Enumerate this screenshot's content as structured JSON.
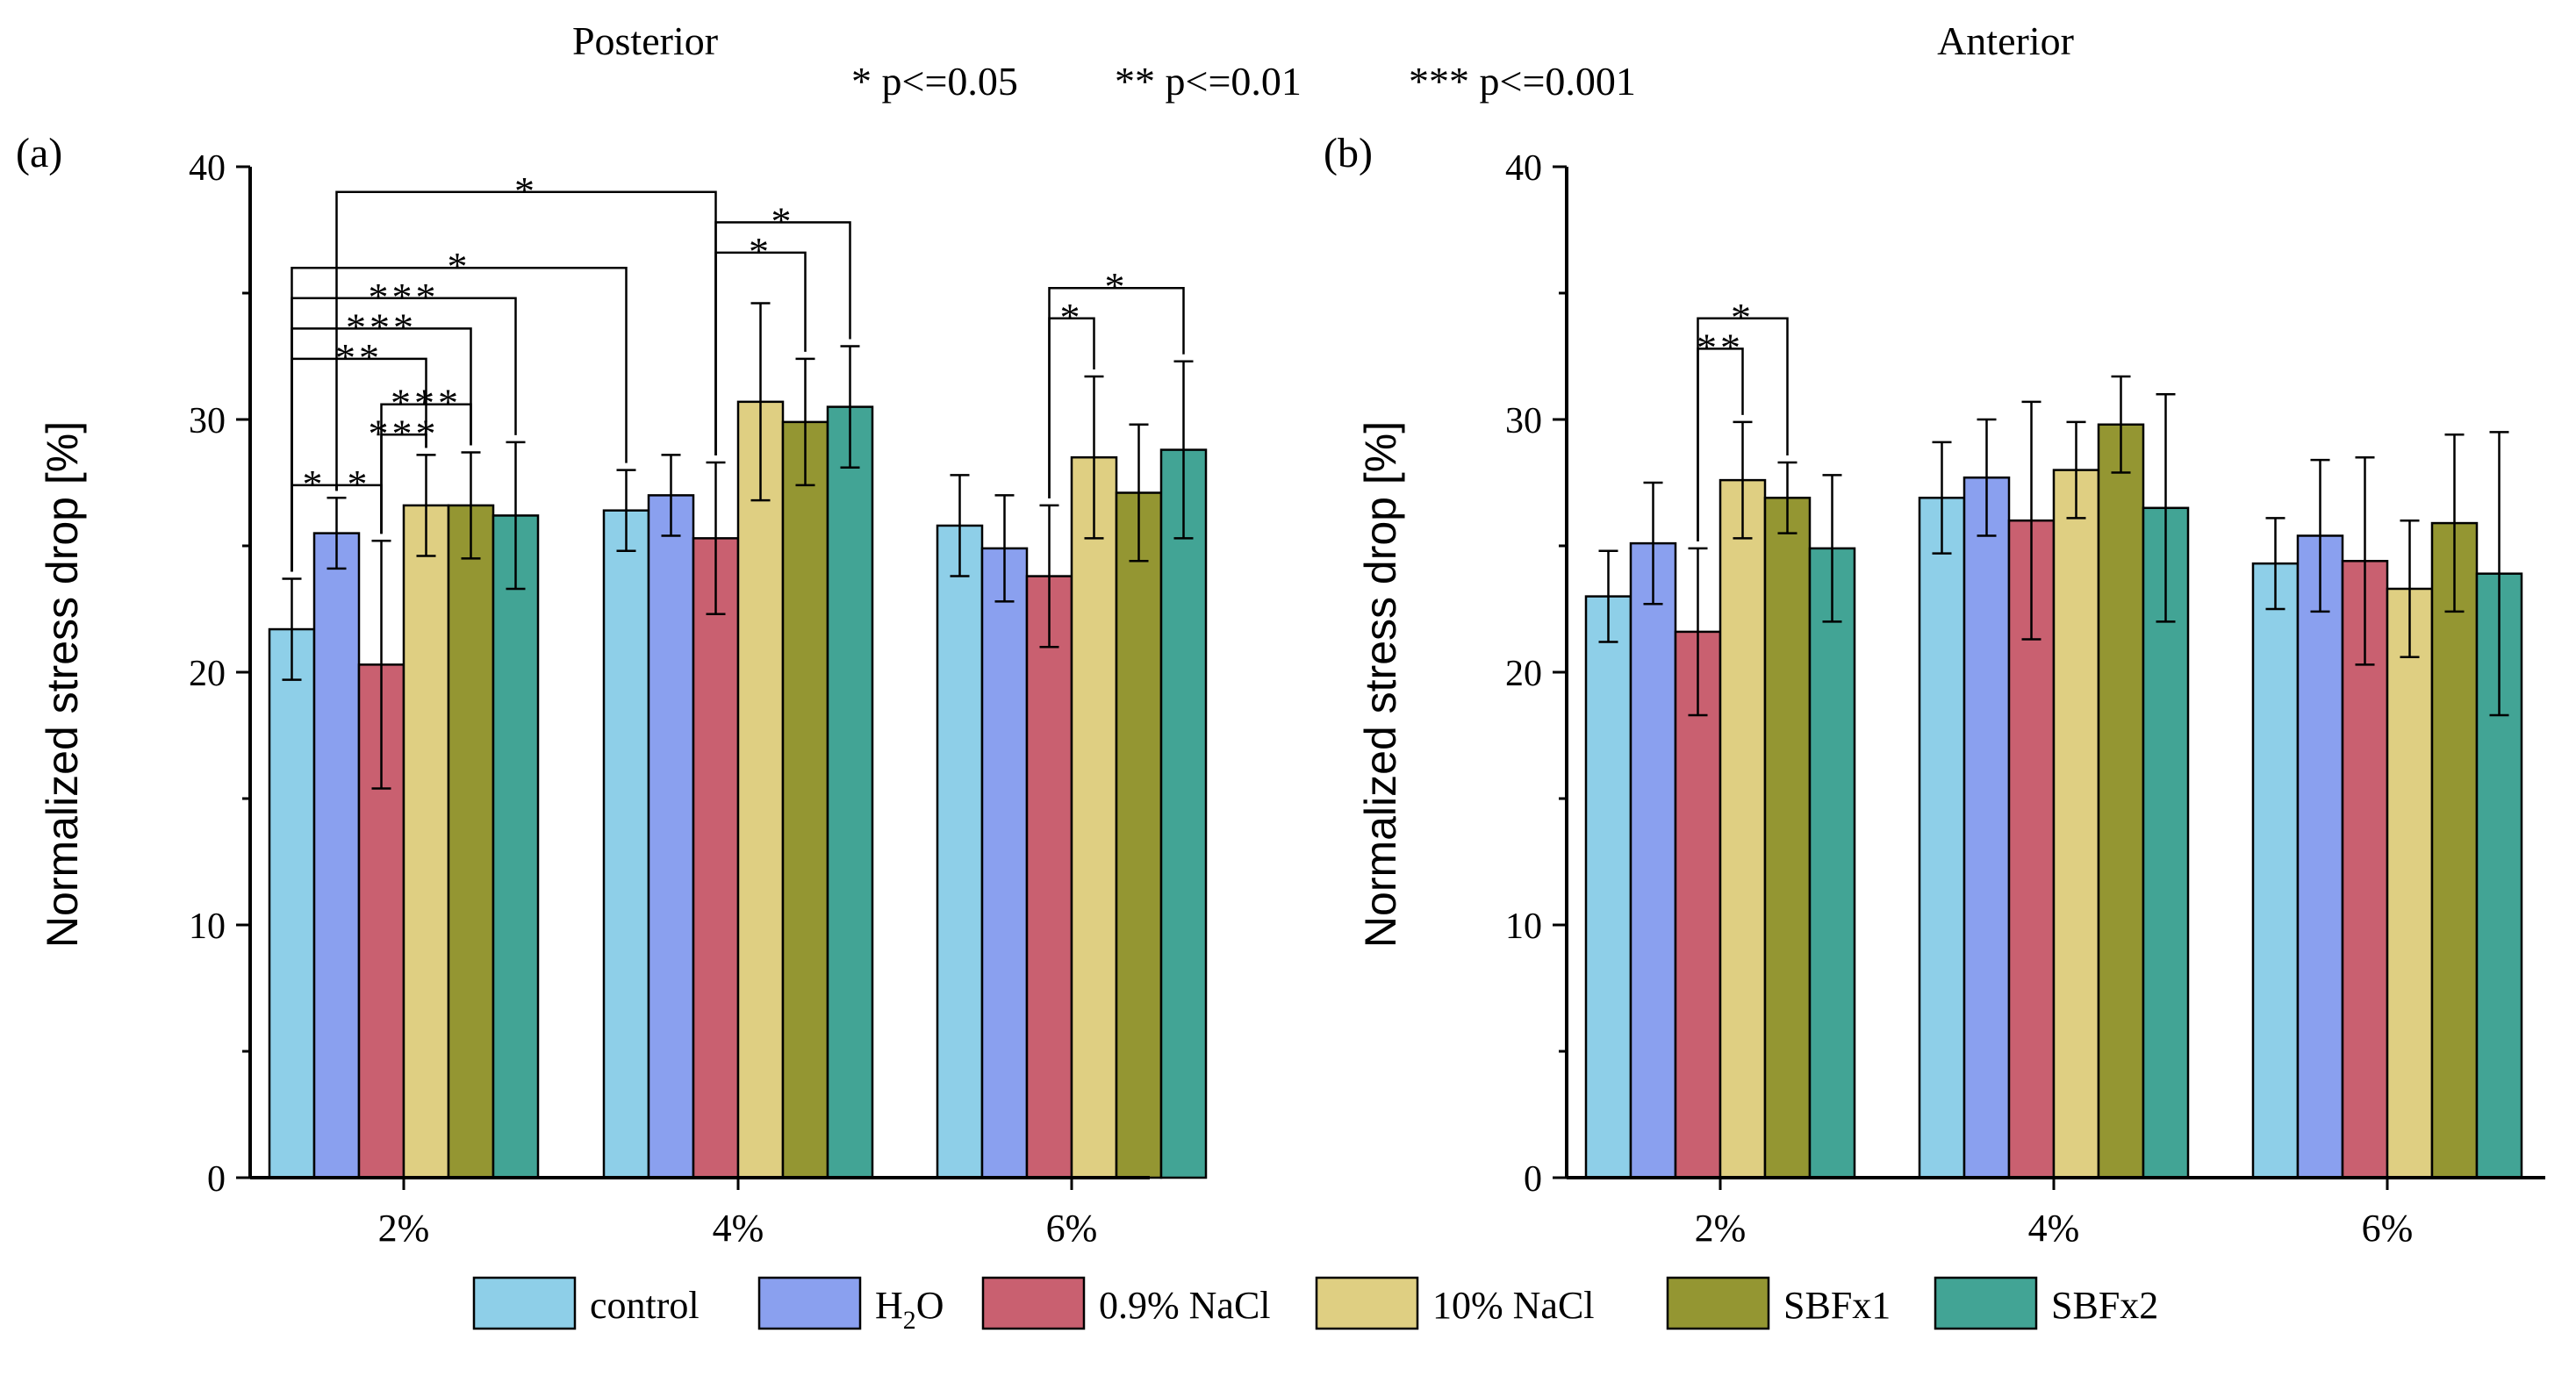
{
  "header": {
    "significance_legend": [
      "* p<=0.05",
      "** p<=0.01",
      "*** p<=0.001"
    ]
  },
  "colors": {
    "control": "#8ecfe8",
    "H2O": "#8aa0ef",
    "0.9% NaCl": "#c96070",
    "10% NaCl": "#dfcf82",
    "SBFx1": "#949632",
    "SBFx2": "#42a495"
  },
  "legend": {
    "items": [
      {
        "key": "control",
        "label": "control"
      },
      {
        "key": "H2O",
        "label": "H",
        "sub": "2",
        "tail": "O"
      },
      {
        "key": "0.9% NaCl",
        "label": "0.9% NaCl"
      },
      {
        "key": "10% NaCl",
        "label": "10% NaCl"
      },
      {
        "key": "SBFx1",
        "label": "SBFx1"
      },
      {
        "key": "SBFx2",
        "label": "SBFx2"
      }
    ]
  },
  "chart_data": [
    {
      "type": "bar",
      "panel_label": "(a)",
      "title": "Posterior",
      "ylabel": "Normalized stress drop [%]",
      "xlabel": "",
      "ylim": [
        0,
        40
      ],
      "yticks": [
        "0",
        "10",
        "20",
        "30",
        "40"
      ],
      "categories": [
        "2%",
        "4%",
        "6%"
      ],
      "series": [
        {
          "name": "control",
          "values": [
            21.7,
            26.4,
            25.8
          ],
          "errors": [
            2.0,
            1.6,
            2.0
          ]
        },
        {
          "name": "H2O",
          "values": [
            25.5,
            27.0,
            24.9
          ],
          "errors": [
            1.4,
            1.6,
            2.1
          ]
        },
        {
          "name": "0.9% NaCl",
          "values": [
            20.3,
            25.3,
            23.8
          ],
          "errors": [
            4.9,
            3.0,
            2.8
          ]
        },
        {
          "name": "10% NaCl",
          "values": [
            26.6,
            30.7,
            28.5
          ],
          "errors": [
            2.0,
            3.9,
            3.2
          ]
        },
        {
          "name": "SBFx1",
          "values": [
            26.6,
            29.9,
            27.1
          ],
          "errors": [
            2.1,
            2.5,
            2.7
          ]
        },
        {
          "name": "SBFx2",
          "values": [
            26.2,
            30.5,
            28.8
          ],
          "errors": [
            2.9,
            2.4,
            3.5
          ]
        }
      ],
      "significance": [
        {
          "label": "*",
          "group_a": 0,
          "series_a": 0,
          "group_b": 0,
          "series_b": 1,
          "y": 27.4
        },
        {
          "label": "*",
          "group_a": 0,
          "series_a": 1,
          "group_b": 0,
          "series_b": 2,
          "y": 27.4
        },
        {
          "label": "**",
          "group_a": 0,
          "series_a": 0,
          "group_b": 0,
          "series_b": 3,
          "y": 32.4
        },
        {
          "label": "***",
          "group_a": 0,
          "series_a": 0,
          "group_b": 0,
          "series_b": 4,
          "y": 33.6
        },
        {
          "label": "***",
          "group_a": 0,
          "series_a": 0,
          "group_b": 0,
          "series_b": 5,
          "y": 34.8
        },
        {
          "label": "*",
          "group_a": 0,
          "series_a": 0,
          "group_b": 1,
          "series_b": 0,
          "y": 36.0
        },
        {
          "label": "***",
          "group_a": 0,
          "series_a": 2,
          "group_b": 0,
          "series_b": 4,
          "y": 30.6
        },
        {
          "label": "***",
          "group_a": 0,
          "series_a": 2,
          "group_b": 0,
          "series_b": 3,
          "y": 29.4
        },
        {
          "label": "*",
          "group_a": 0,
          "series_a": 1,
          "group_b": 1,
          "series_b": 2,
          "y": 39.0
        },
        {
          "label": "*",
          "group_a": 1,
          "series_a": 2,
          "group_b": 1,
          "series_b": 4,
          "y": 36.6
        },
        {
          "label": "*",
          "group_a": 1,
          "series_a": 2,
          "group_b": 1,
          "series_b": 5,
          "y": 37.8
        },
        {
          "label": "*",
          "group_a": 2,
          "series_a": 2,
          "group_b": 2,
          "series_b": 3,
          "y": 34.0
        },
        {
          "label": "*",
          "group_a": 2,
          "series_a": 2,
          "group_b": 2,
          "series_b": 5,
          "y": 35.2
        }
      ]
    },
    {
      "type": "bar",
      "panel_label": "(b)",
      "title": "Anterior",
      "ylabel": "Normalized stress drop [%]",
      "xlabel": "",
      "ylim": [
        0,
        40
      ],
      "yticks": [
        "0",
        "10",
        "20",
        "30",
        "40"
      ],
      "categories": [
        "2%",
        "4%",
        "6%"
      ],
      "series": [
        {
          "name": "control",
          "values": [
            23.0,
            26.9,
            24.3
          ],
          "errors": [
            1.8,
            2.2,
            1.8
          ]
        },
        {
          "name": "H2O",
          "values": [
            25.1,
            27.7,
            25.4
          ],
          "errors": [
            2.4,
            2.3,
            3.0
          ]
        },
        {
          "name": "0.9% NaCl",
          "values": [
            21.6,
            26.0,
            24.4
          ],
          "errors": [
            3.3,
            4.7,
            4.1
          ]
        },
        {
          "name": "10% NaCl",
          "values": [
            27.6,
            28.0,
            23.3
          ],
          "errors": [
            2.3,
            1.9,
            2.7
          ]
        },
        {
          "name": "SBFx1",
          "values": [
            26.9,
            29.8,
            25.9
          ],
          "errors": [
            1.4,
            1.9,
            3.5
          ]
        },
        {
          "name": "SBFx2",
          "values": [
            24.9,
            26.5,
            23.9
          ],
          "errors": [
            2.9,
            4.5,
            5.6
          ]
        }
      ],
      "significance": [
        {
          "label": "**",
          "group_a": 0,
          "series_a": 2,
          "group_b": 0,
          "series_b": 3,
          "y": 32.8
        },
        {
          "label": "*",
          "group_a": 0,
          "series_a": 2,
          "group_b": 0,
          "series_b": 4,
          "y": 34.0
        }
      ]
    }
  ]
}
